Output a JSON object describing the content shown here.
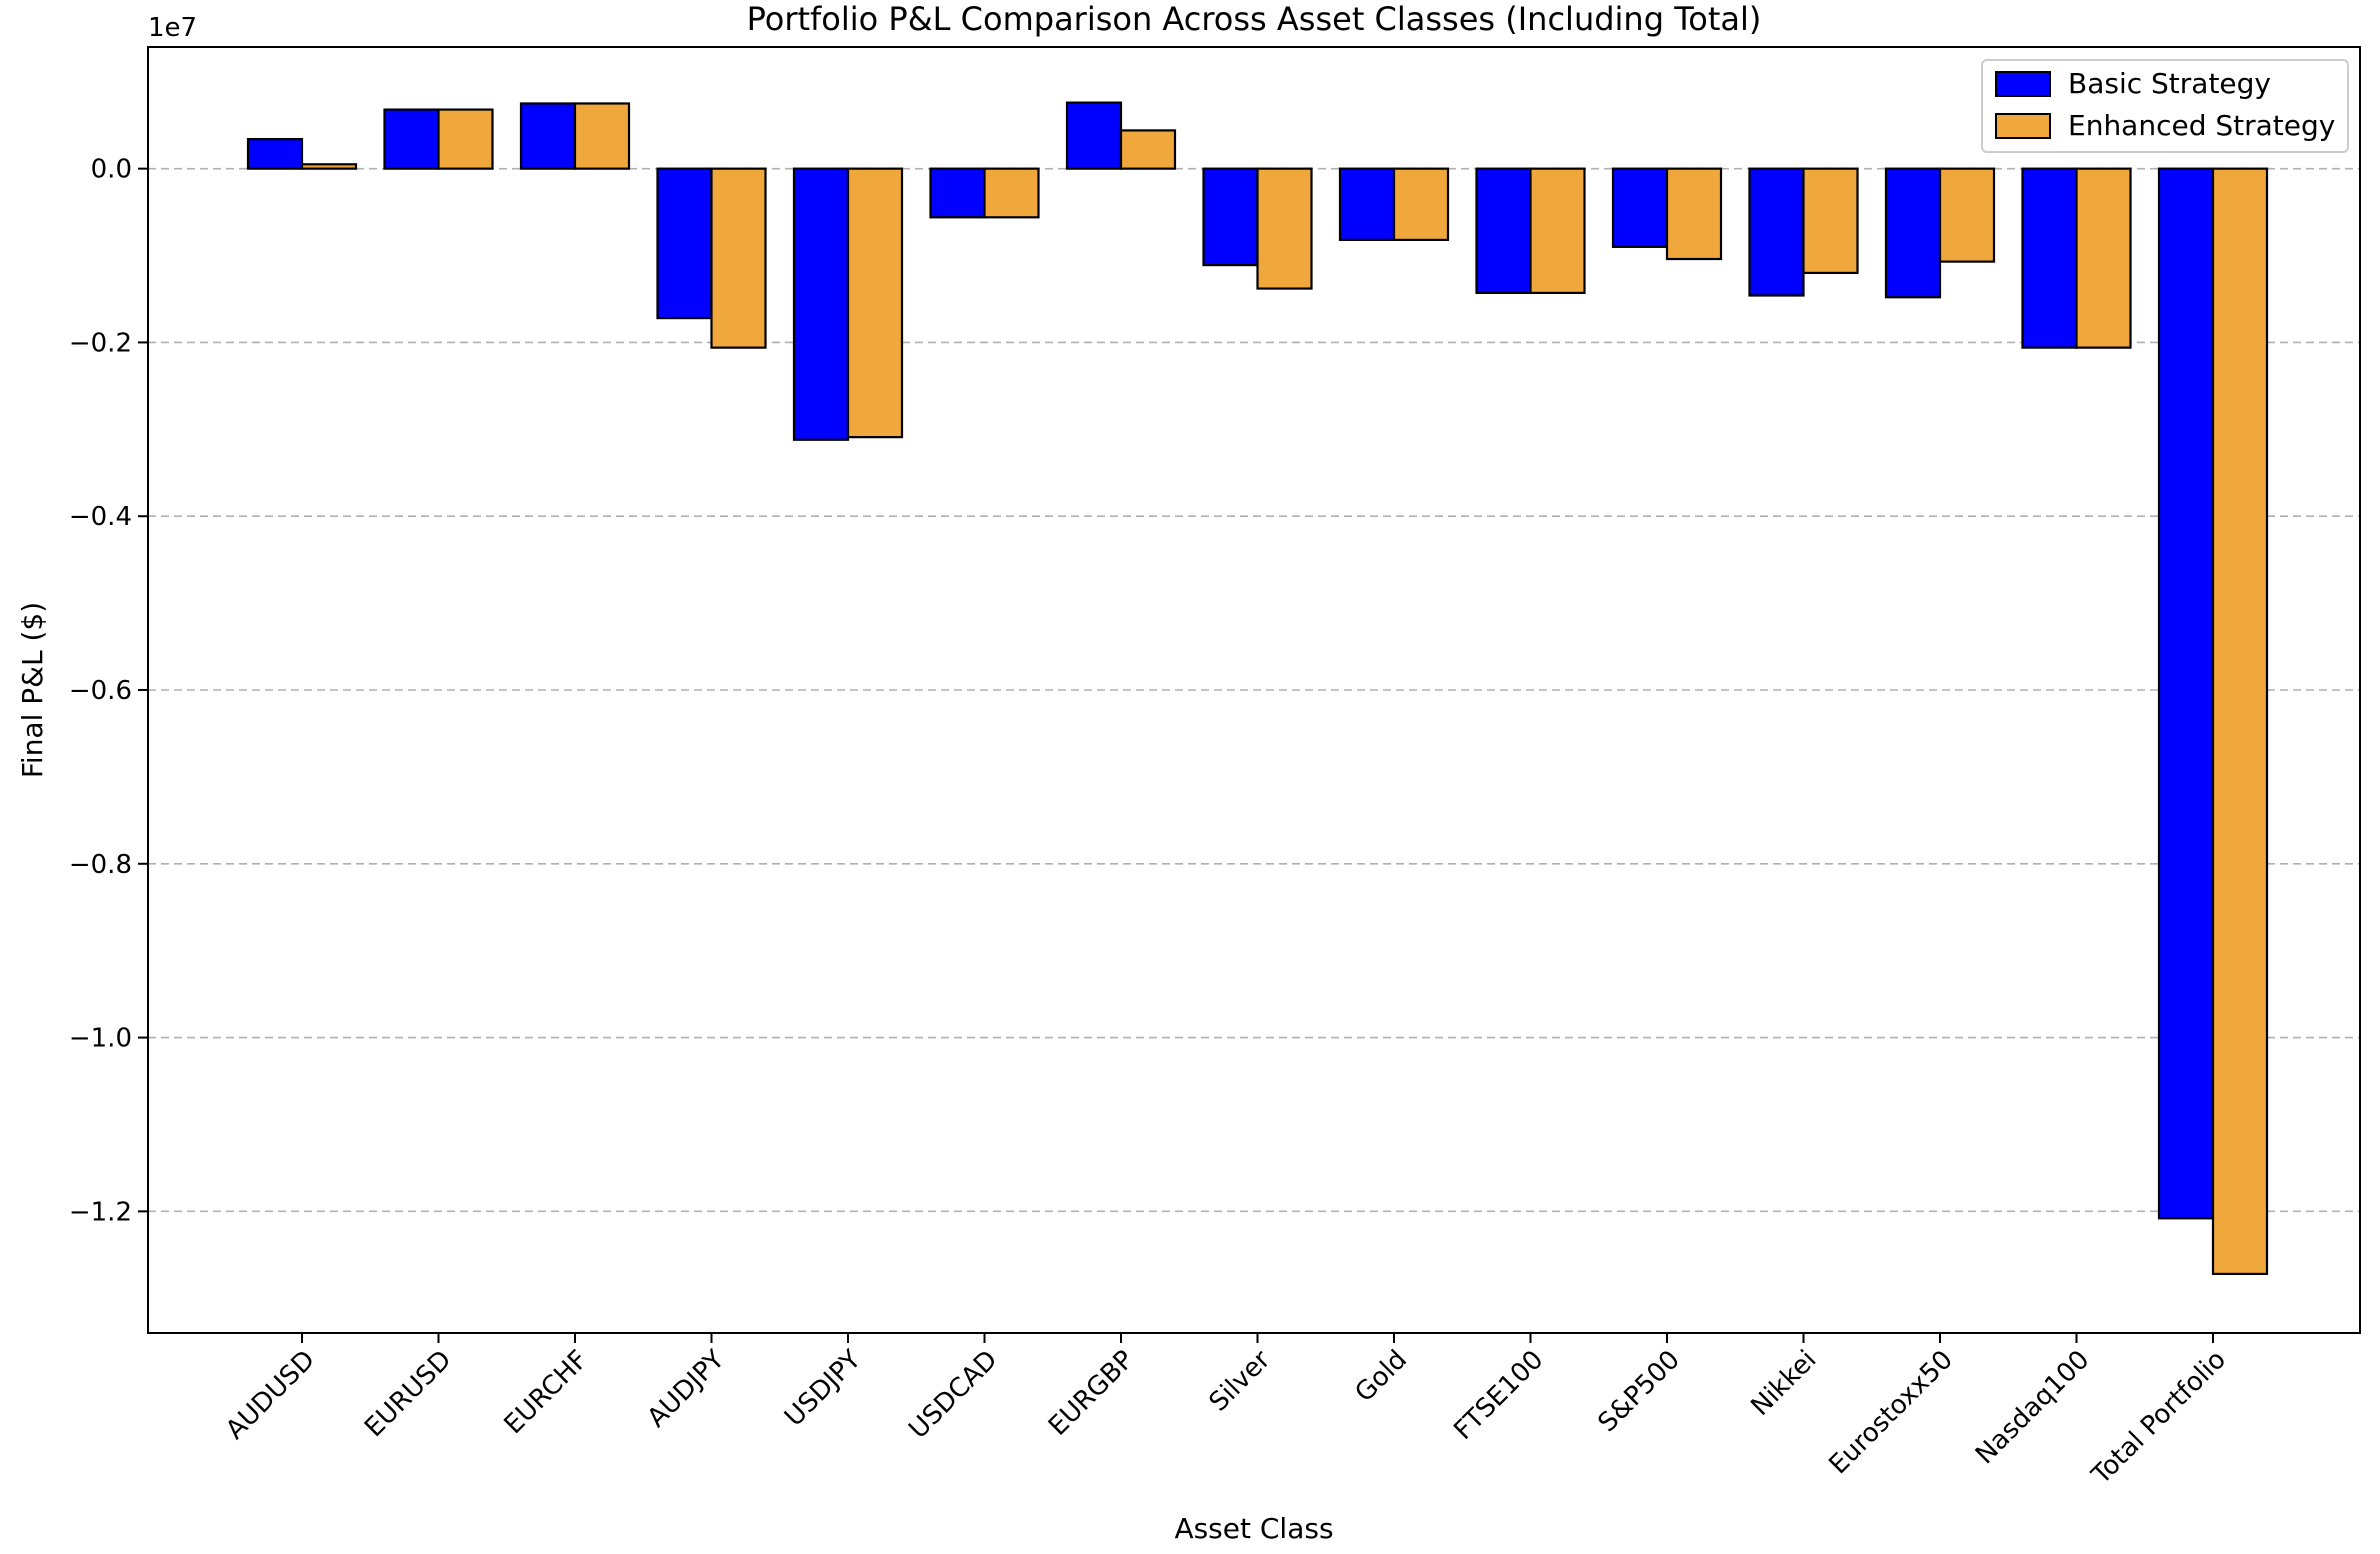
{
  "chart_data": {
    "type": "bar",
    "title": "Portfolio P&L Comparison Across Asset Classes (Including Total)",
    "xlabel": "Asset Class",
    "ylabel": "Final P&L ($)",
    "scale_label": "1e7",
    "categories": [
      "AUDUSD",
      "EURUSD",
      "EURCHF",
      "AUDJPY",
      "USDJPY",
      "USDCAD",
      "EURGBP",
      "Silver",
      "Gold",
      "FTSE100",
      "S&P500",
      "Nikkei",
      "Eurostoxx50",
      "Nasdaq100",
      "Total Portfolio"
    ],
    "series": [
      {
        "name": "Basic Strategy",
        "color": "#0000ff",
        "values": [
          340000,
          680000,
          750000,
          -1720000,
          -3120000,
          -560000,
          760000,
          -1110000,
          -820000,
          -1430000,
          -900000,
          -1460000,
          -1480000,
          -2060000,
          -12080000
        ]
      },
      {
        "name": "Enhanced Strategy",
        "color": "#f0a83c",
        "values": [
          50000,
          680000,
          750000,
          -2060000,
          -3090000,
          -560000,
          440000,
          -1380000,
          -820000,
          -1430000,
          -1040000,
          -1200000,
          -1070000,
          -2060000,
          -12720000
        ]
      }
    ],
    "ylim": [
      -13400000,
      1400000
    ],
    "yticks": [
      {
        "value": 0,
        "label": "0.0"
      },
      {
        "value": -2000000,
        "label": "−0.2"
      },
      {
        "value": -4000000,
        "label": "−0.4"
      },
      {
        "value": -6000000,
        "label": "−0.6"
      },
      {
        "value": -8000000,
        "label": "−0.8"
      },
      {
        "value": -10000000,
        "label": "−1.0"
      },
      {
        "value": -12000000,
        "label": "−1.2"
      }
    ],
    "grid": "y-dashed",
    "legend": "top-right"
  }
}
